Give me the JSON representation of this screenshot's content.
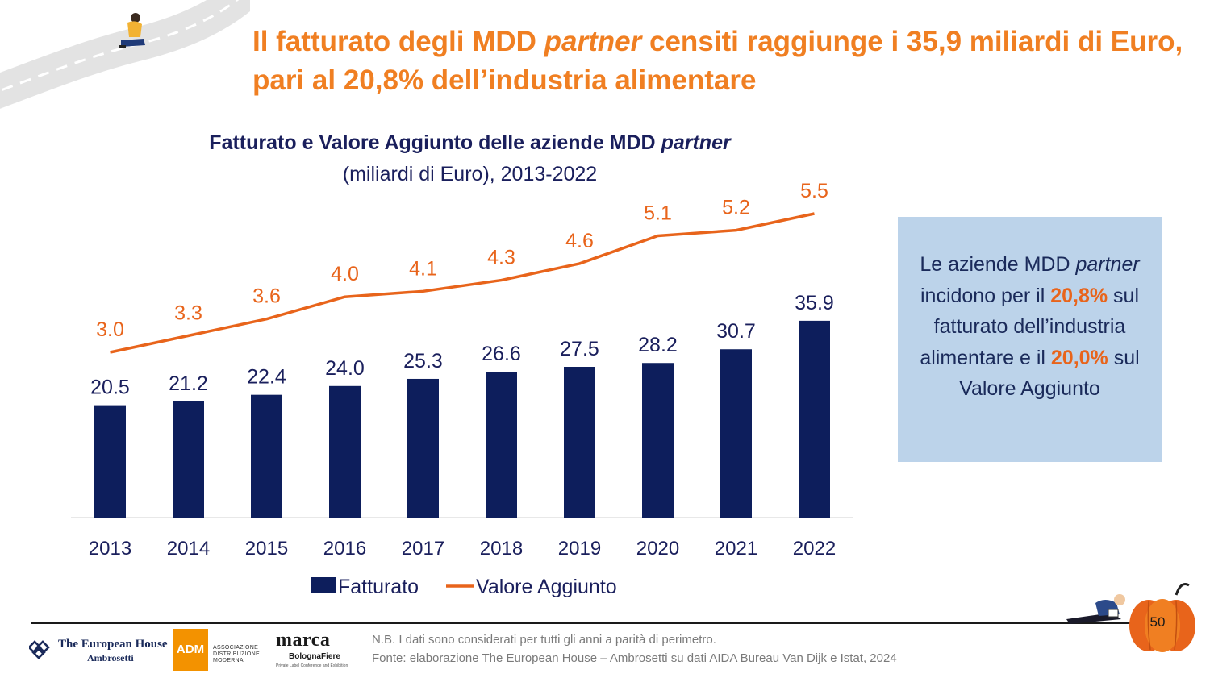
{
  "title": {
    "part1": "Il fatturato degli MDD ",
    "italic": "partner",
    "part2": " censiti raggiunge i 35,9 miliardi di Euro, pari al 20,8% dell’industria alimentare"
  },
  "chart_data": {
    "type": "bar",
    "title_part1": "Fatturato e Valore Aggiunto delle aziende MDD ",
    "title_italic": "partner",
    "subtitle": "(miliardi di Euro), 2013-2022",
    "categories": [
      "2013",
      "2014",
      "2015",
      "2016",
      "2017",
      "2018",
      "2019",
      "2020",
      "2021",
      "2022"
    ],
    "series": [
      {
        "name": "Fatturato",
        "type": "bar",
        "color": "#0d1e5c",
        "values": [
          20.5,
          21.2,
          22.4,
          24.0,
          25.3,
          26.6,
          27.5,
          28.2,
          30.7,
          35.9
        ],
        "labels": [
          "20.5",
          "21.2",
          "22.4",
          "24.0",
          "25.3",
          "26.6",
          "27.5",
          "28.2",
          "30.7",
          "35.9"
        ]
      },
      {
        "name": "Valore Aggiunto",
        "type": "line",
        "color": "#e8641b",
        "values": [
          3.0,
          3.3,
          3.6,
          4.0,
          4.1,
          4.3,
          4.6,
          5.1,
          5.2,
          5.5
        ],
        "labels": [
          "3.0",
          "3.3",
          "3.6",
          "4.0",
          "4.1",
          "4.3",
          "4.6",
          "5.1",
          "5.2",
          "5.5"
        ]
      }
    ],
    "legend_position": "bottom",
    "gridlines": false
  },
  "info_box": {
    "t1": "Le aziende MDD ",
    "t2": "partner",
    "t3": " incidono per il ",
    "h1": "20,8%",
    "t4": " sul fatturato dell’industria alimentare e il ",
    "h2": "20,0%",
    "t5": " sul Valore Aggiunto"
  },
  "footer": {
    "note": "N.B. I dati sono considerati per tutti gli anni a parità di perimetro.",
    "source": "Fonte: elaborazione The European House – Ambrosetti su dati AIDA Bureau Van Dijk e Istat, 2024",
    "page_number": "50"
  },
  "logos": {
    "teh_name": "The European House",
    "teh_sub": "Ambrosetti",
    "adm_mark": "ADM",
    "adm_text_1": "ASSOCIAZIONE",
    "adm_text_2": "DISTRIBUZIONE MODERNA",
    "marca_word": "marca",
    "marca_bf": "BolognaFiere",
    "marca_tag": "Private Label Conference and Exhibition"
  },
  "colors": {
    "accent_orange": "#f07f22",
    "navy": "#0d1e5c",
    "box_blue": "#bcd3ea"
  }
}
